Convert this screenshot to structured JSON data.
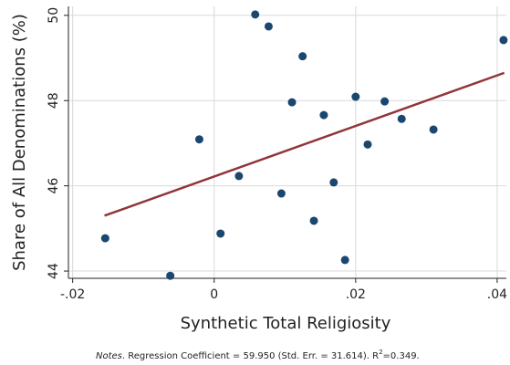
{
  "chart_data": {
    "type": "scatter",
    "x_label": "Synthetic Total Religiosity",
    "y_label": "Share of All Denominations (%)",
    "note": {
      "lead": "Notes",
      "text": ". Regression Coefficient = 59.950 (Std. Err. = 31.614). R",
      "sup": "2",
      "tail": "=0.349."
    },
    "x": [
      -0.0154,
      -0.0062,
      -0.0021,
      0.0009,
      0.0035,
      0.0058,
      0.0077,
      0.0095,
      0.011,
      0.0125,
      0.0141,
      0.0155,
      0.0169,
      0.0185,
      0.02,
      0.0217,
      0.0241,
      0.0265,
      0.031,
      0.0409
    ],
    "series": [
      {
        "color": "#1a476f",
        "values": [
          44.77,
          43.89,
          47.09,
          44.88,
          46.23,
          50.02,
          49.74,
          45.82,
          47.96,
          49.04,
          45.18,
          47.66,
          46.08,
          44.26,
          48.09,
          46.97,
          47.98,
          47.57,
          47.32,
          49.42
        ]
      }
    ],
    "fit": {
      "color": "#90353b",
      "x": [
        -0.0155,
        0.041
      ],
      "values": [
        45.3,
        48.65
      ]
    },
    "xlim": [
      -0.0206,
      0.0413
    ],
    "ylim": [
      43.83,
      50.21
    ],
    "xticks": [
      {
        "value": -0.02,
        "label": "-.02"
      },
      0,
      {
        "value": 0.02,
        "label": ".02"
      },
      {
        "value": 0.04,
        "label": ".04"
      }
    ],
    "yticks": [
      44,
      46,
      48,
      50
    ],
    "grid": true
  }
}
